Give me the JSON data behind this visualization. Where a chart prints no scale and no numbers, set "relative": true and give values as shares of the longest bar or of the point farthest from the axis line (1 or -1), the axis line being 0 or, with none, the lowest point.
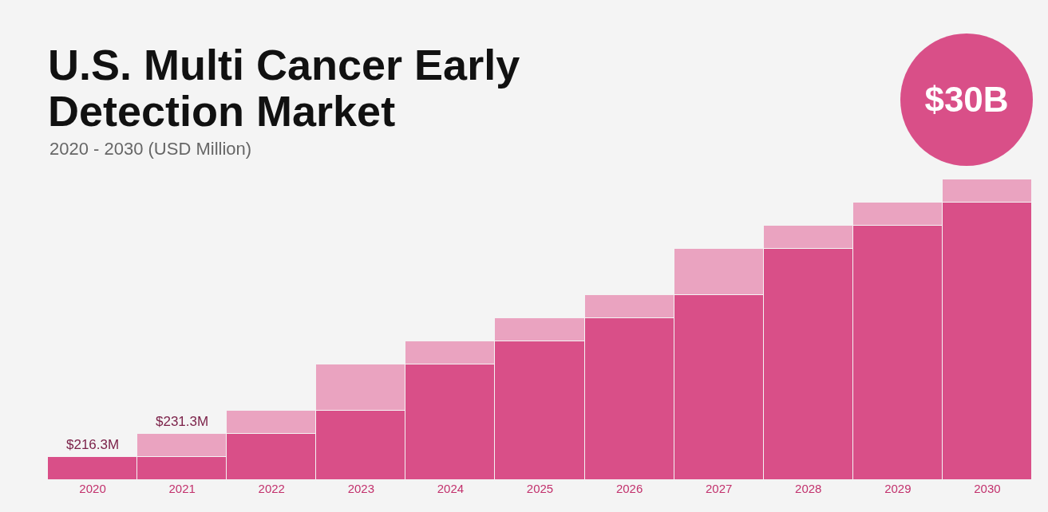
{
  "chart_data": {
    "type": "bar",
    "title": "U.S. Multi Cancer Early Detection Market",
    "subtitle": "2020 - 2030 (USD Million)",
    "relative": true,
    "stacked": true,
    "categories": [
      "2020",
      "2021",
      "2022",
      "2023",
      "2024",
      "2025",
      "2026",
      "2027",
      "2028",
      "2029",
      "2030"
    ],
    "series": [
      {
        "color": "#d94f88",
        "values": [
          0.077,
          0.077,
          0.154,
          0.231,
          0.385,
          0.462,
          0.538,
          0.615,
          0.769,
          0.846,
          0.923
        ]
      },
      {
        "color": "#eaa3c0",
        "values": [
          null,
          0.077,
          0.077,
          0.154,
          0.077,
          0.077,
          0.077,
          0.154,
          0.077,
          0.077,
          0.077
        ]
      }
    ],
    "annotations": [
      {
        "text": "$216.3M",
        "x": "2020",
        "y": 0.077
      },
      {
        "text": "$231.3M",
        "x": "2021",
        "y": 0.154
      },
      "$30B"
    ],
    "grid": false
  }
}
